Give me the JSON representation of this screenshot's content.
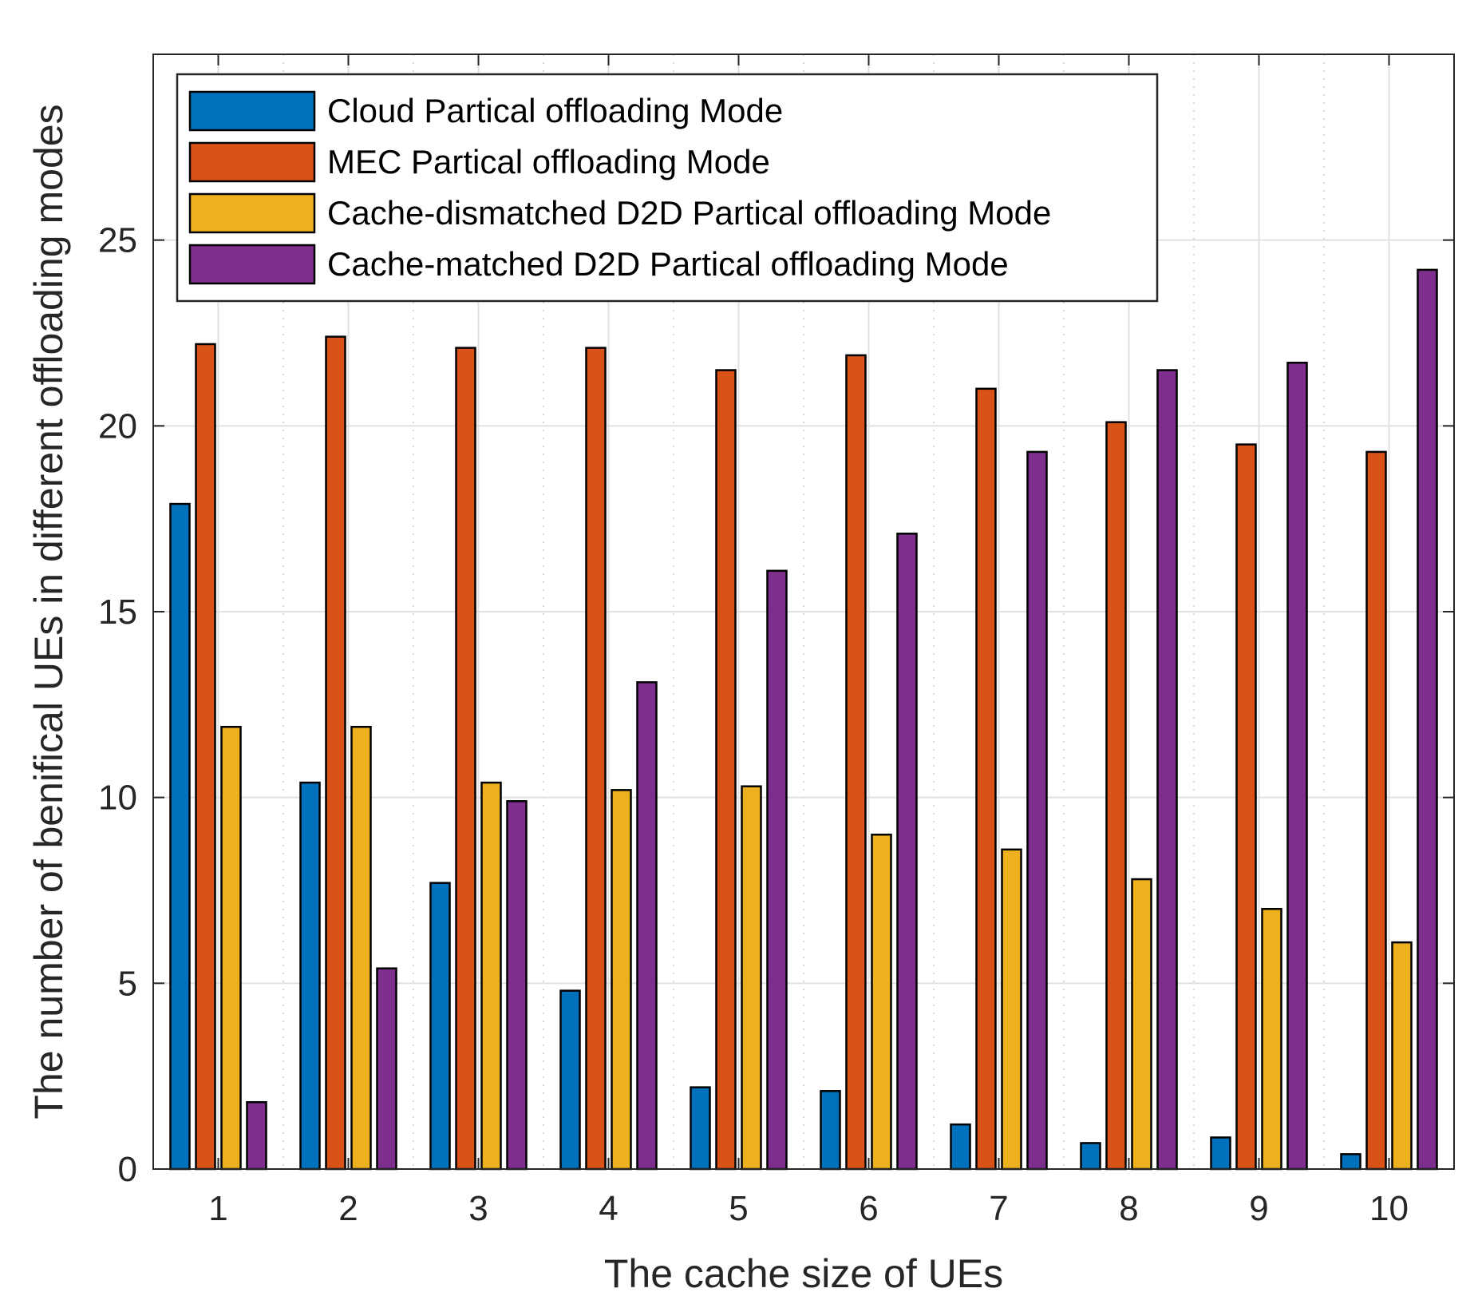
{
  "chart_data": {
    "type": "bar",
    "title": "",
    "xlabel": "The cache size of UEs",
    "ylabel": "The number of  benifical UEs in different offloading modes",
    "categories": [
      "1",
      "2",
      "3",
      "4",
      "5",
      "6",
      "7",
      "8",
      "9",
      "10"
    ],
    "ylim": [
      0,
      30
    ],
    "yticks": [
      "0",
      "5",
      "10",
      "15",
      "20",
      "25"
    ],
    "grid": true,
    "legend_position": "top-left",
    "series": [
      {
        "name": "Cloud Partical offloading Mode",
        "color": "#0072BD",
        "values": [
          17.9,
          10.4,
          7.7,
          4.8,
          2.2,
          2.1,
          1.2,
          0.7,
          0.85,
          0.4
        ]
      },
      {
        "name": "MEC Partical offloading Mode",
        "color": "#D95319",
        "values": [
          22.2,
          22.4,
          22.1,
          22.1,
          21.5,
          21.9,
          21.0,
          20.1,
          19.5,
          19.3
        ]
      },
      {
        "name": "Cache-dismatched D2D Partical offloading Mode",
        "color": "#EDB120",
        "values": [
          11.9,
          11.9,
          10.4,
          10.2,
          10.3,
          9.0,
          8.6,
          7.8,
          7.0,
          6.1
        ]
      },
      {
        "name": "Cache-matched D2D Partical offloading Mode",
        "color": "#7E2F8E",
        "values": [
          1.8,
          5.4,
          9.9,
          13.1,
          16.1,
          17.1,
          19.3,
          21.5,
          21.7,
          24.2
        ]
      }
    ]
  }
}
